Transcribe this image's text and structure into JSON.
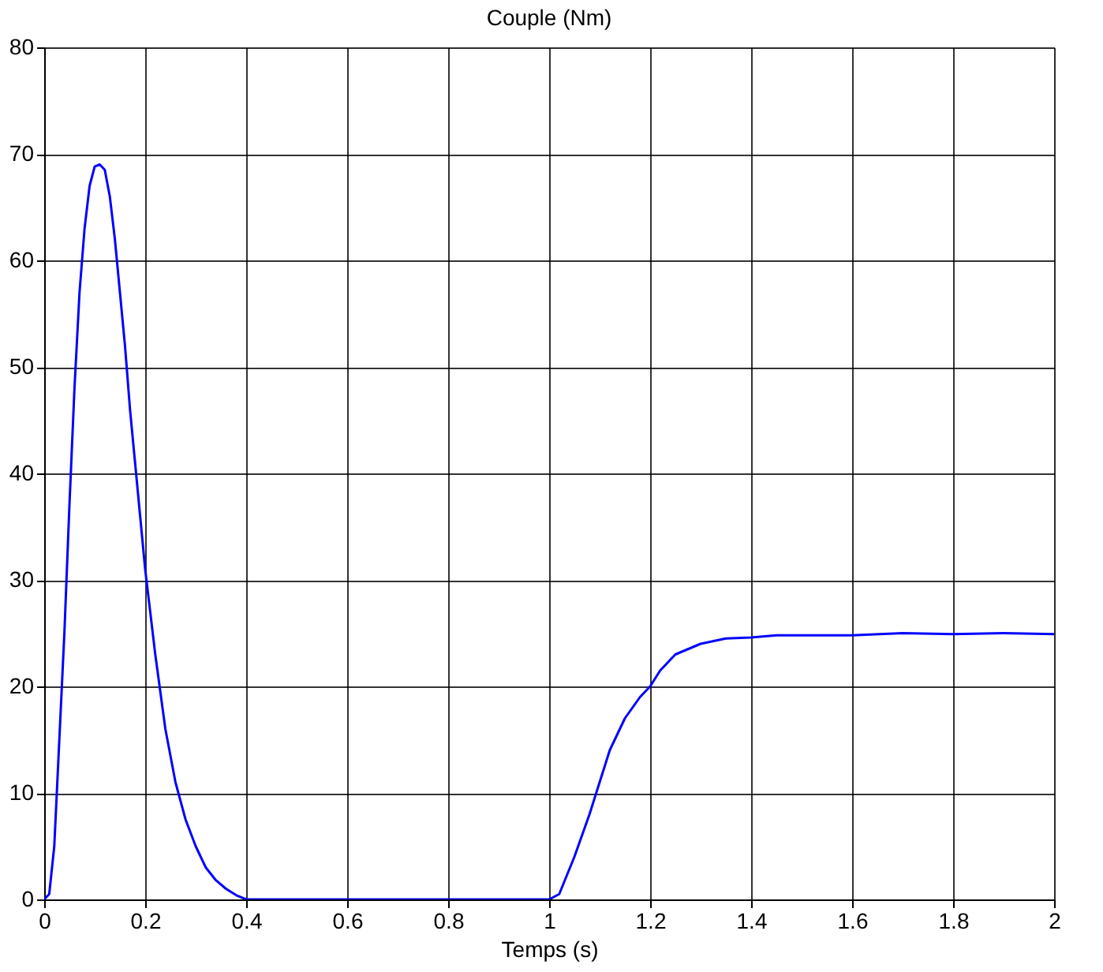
{
  "chart_data": {
    "type": "line",
    "title": "Couple (Nm)",
    "xlabel": "Temps (s)",
    "x": [
      0,
      0.01,
      0.02,
      0.03,
      0.04,
      0.05,
      0.06,
      0.07,
      0.08,
      0.09,
      0.1,
      0.11,
      0.12,
      0.13,
      0.14,
      0.15,
      0.16,
      0.17,
      0.18,
      0.19,
      0.2,
      0.22,
      0.24,
      0.26,
      0.28,
      0.3,
      0.32,
      0.34,
      0.36,
      0.38,
      0.4,
      0.45,
      0.5,
      0.6,
      0.7,
      0.8,
      0.9,
      1.0,
      1.02,
      1.05,
      1.08,
      1.1,
      1.12,
      1.15,
      1.18,
      1.2,
      1.22,
      1.25,
      1.3,
      1.35,
      1.4,
      1.45,
      1.5,
      1.6,
      1.7,
      1.8,
      1.9,
      2.0
    ],
    "series": [
      {
        "color": "#0000ff",
        "values": [
          0,
          0.5,
          5,
          15,
          25,
          37,
          48,
          57,
          63,
          67,
          68.8,
          69,
          68.5,
          66,
          62,
          57,
          52,
          46,
          41,
          36,
          31,
          23,
          16,
          11,
          7.5,
          5,
          3,
          1.8,
          1,
          0.4,
          0,
          0,
          0,
          0,
          0,
          0,
          0,
          0,
          0.5,
          4,
          8,
          11,
          14,
          17,
          19,
          20,
          21.5,
          23,
          24,
          24.5,
          24.6,
          24.8,
          24.8,
          24.8,
          25,
          24.9,
          25,
          24.9
        ]
      }
    ],
    "xlim": [
      0,
      2
    ],
    "xticks": [
      0,
      0.2,
      0.4,
      0.6,
      0.8,
      1,
      1.2,
      1.4,
      1.6,
      1.8,
      2
    ],
    "ylim": [
      0,
      80
    ],
    "yticks": [
      0,
      10,
      20,
      30,
      40,
      50,
      60,
      70,
      80
    ],
    "grid": true,
    "marker": "none",
    "line_style": "solid"
  }
}
